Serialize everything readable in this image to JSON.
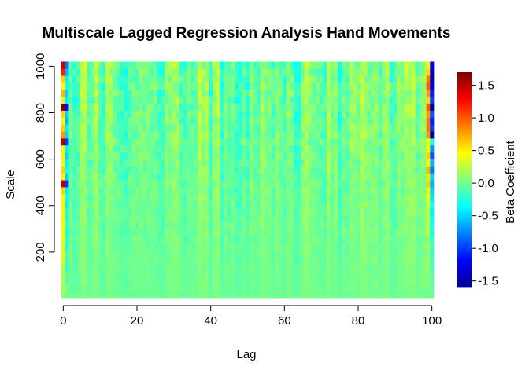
{
  "chart_data": {
    "type": "heatmap",
    "title": "Multiscale Lagged Regression Analysis Hand Movements",
    "xlabel": "Lag",
    "ylabel": "Scale",
    "xlim": [
      -0.5,
      100.5
    ],
    "ylim": [
      0,
      1025
    ],
    "x_ticks": [
      0,
      20,
      40,
      60,
      80,
      100
    ],
    "y_ticks": [
      200,
      400,
      600,
      800,
      1000
    ],
    "n_lags": 101,
    "scales": [
      15,
      45,
      75,
      105,
      135,
      165,
      195,
      225,
      255,
      285,
      315,
      345,
      375,
      405,
      435,
      465,
      495,
      525,
      555,
      585,
      615,
      645,
      675,
      705,
      735,
      765,
      795,
      825,
      855,
      885,
      915,
      945,
      975,
      1005
    ],
    "colorbar": {
      "label": "Beta Coefficient",
      "range": [
        -1.6,
        1.7
      ],
      "ticks": [
        -1.5,
        -1.0,
        -0.5,
        0.0,
        0.5,
        1.0,
        1.5
      ],
      "colors": [
        "#00008F",
        "#0000FF",
        "#0080FF",
        "#00FFFF",
        "#80FF80",
        "#FFFF00",
        "#FF8000",
        "#FF0000",
        "#800000"
      ]
    },
    "edge_values": {
      "lag_0": [
        0.1,
        0.15,
        0.2,
        0.15,
        0.25,
        0.3,
        0.35,
        0.3,
        0.4,
        0.4,
        0.45,
        0.5,
        0.4,
        0.5,
        0.45,
        0.6,
        1.5,
        0.5,
        0.6,
        0.4,
        0.5,
        0.4,
        1.55,
        0.8,
        0.6,
        0.4,
        0.6,
        1.7,
        0.3,
        0.7,
        0.45,
        0.6,
        1.2,
        1.45
      ],
      "lag_1": [
        0.0,
        0.05,
        -0.1,
        -0.05,
        -0.2,
        -0.15,
        -0.1,
        -0.25,
        -0.2,
        -0.3,
        -0.2,
        -0.3,
        -0.25,
        -0.4,
        -0.3,
        -0.4,
        -1.0,
        -0.5,
        -0.3,
        -0.4,
        -0.5,
        -0.4,
        -1.0,
        -0.5,
        -0.4,
        -0.6,
        -0.5,
        -1.2,
        -0.4,
        -0.5,
        -0.3,
        -0.4,
        -0.6,
        -0.8
      ],
      "lag_99": [
        0.0,
        0.05,
        0.1,
        0.05,
        0.1,
        0.15,
        0.1,
        0.15,
        0.1,
        0.2,
        0.2,
        0.25,
        0.2,
        0.3,
        0.4,
        0.5,
        0.6,
        0.55,
        0.7,
        0.5,
        0.6,
        0.5,
        0.4,
        0.8,
        0.9,
        0.9,
        0.8,
        1.0,
        0.6,
        0.8,
        1.0,
        0.9,
        0.6,
        0.5
      ],
      "lag_100": [
        0.0,
        -0.05,
        -0.05,
        -0.1,
        -0.1,
        -0.15,
        -0.2,
        -0.15,
        -0.2,
        -0.3,
        -0.3,
        -0.35,
        -0.4,
        -0.3,
        -0.45,
        -0.5,
        -0.6,
        -0.5,
        -0.8,
        -0.6,
        -0.9,
        -0.7,
        -0.3,
        -1.6,
        -1.0,
        -1.1,
        -0.9,
        -1.55,
        -1.0,
        -1.1,
        -1.3,
        -1.5,
        -1.4,
        -1.2
      ]
    },
    "interior_value_range": [
      -0.35,
      0.45
    ],
    "grid": false,
    "legend_position": "right"
  }
}
